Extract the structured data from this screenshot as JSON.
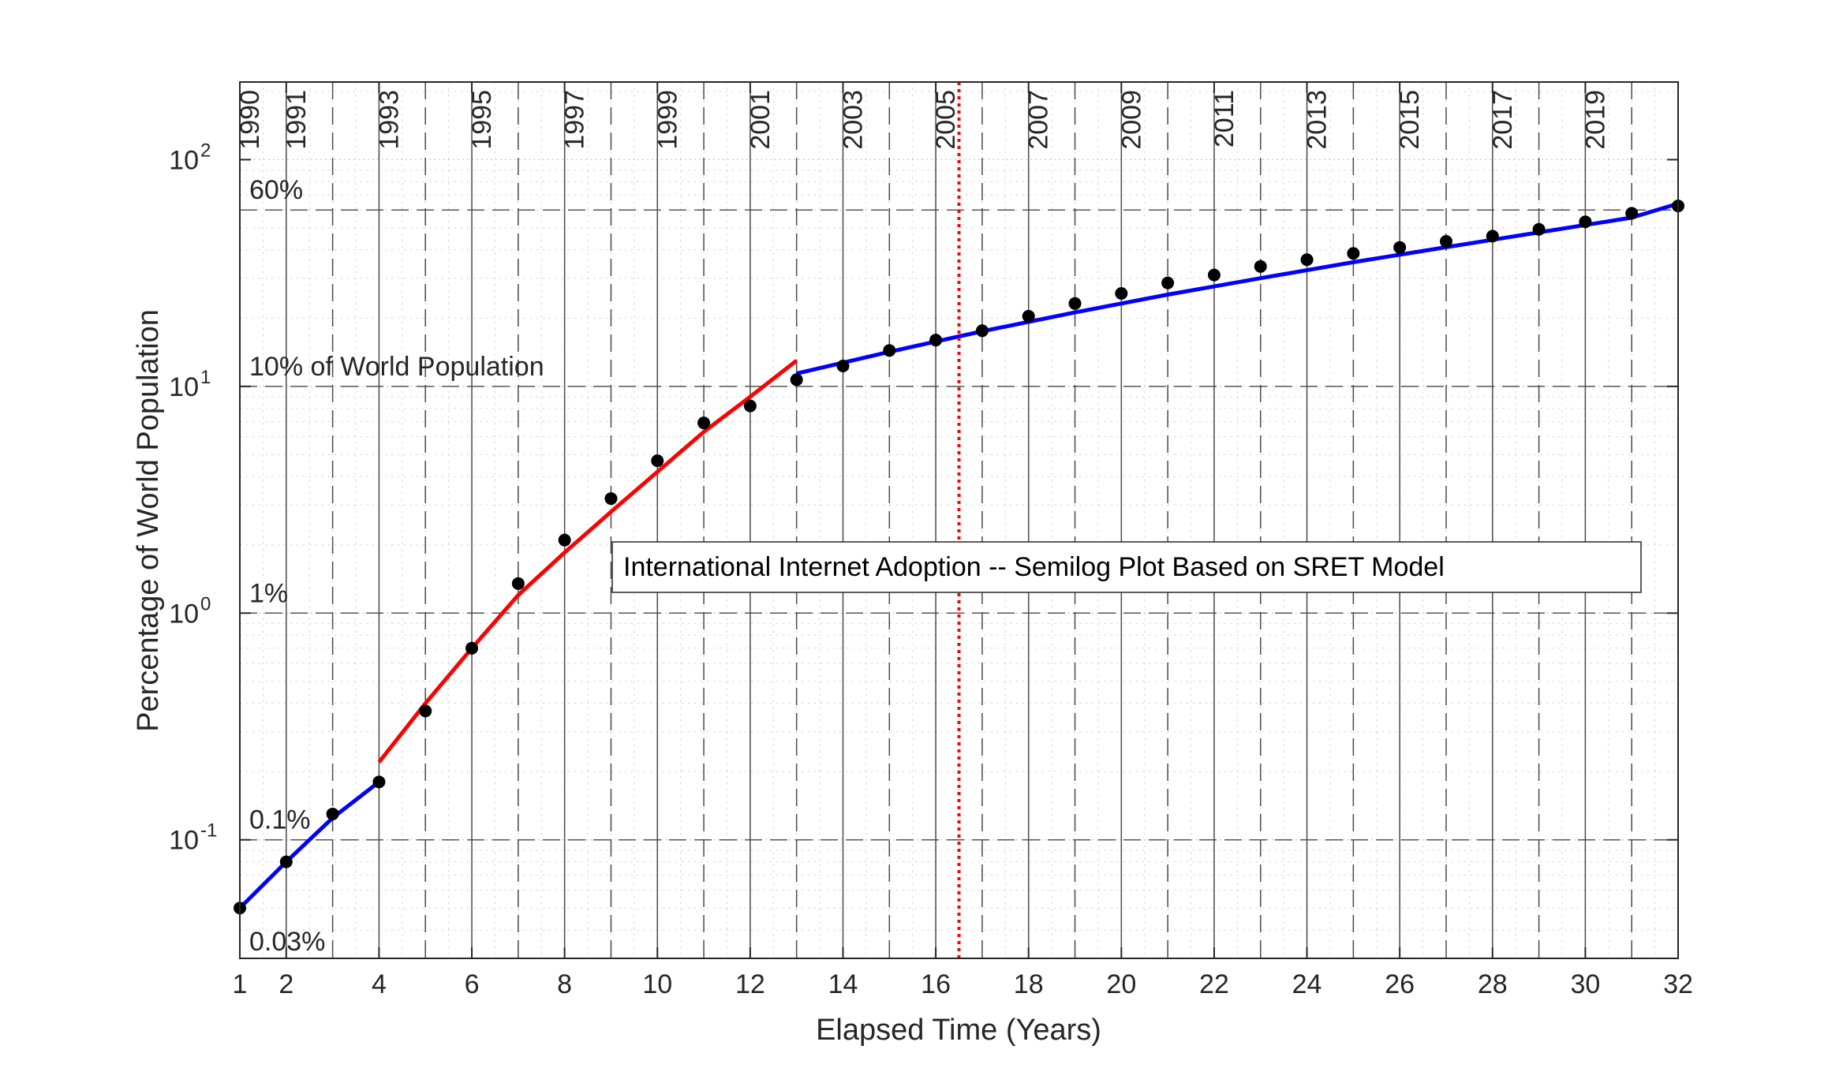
{
  "chart_data": {
    "type": "scatter",
    "title": "",
    "xlabel": "Elapsed Time (Years)",
    "ylabel": "Percentage of World Population",
    "xscale": "linear",
    "yscale": "log",
    "xlim": [
      1,
      32
    ],
    "ylim": [
      0.03,
      220
    ],
    "grid": true,
    "x_ticks": [
      1,
      2,
      4,
      6,
      8,
      10,
      12,
      14,
      16,
      18,
      20,
      22,
      24,
      26,
      28,
      30,
      32
    ],
    "y_ticks": [
      {
        "value": 0.1,
        "base": "10",
        "exp": "-1"
      },
      {
        "value": 1,
        "base": "10",
        "exp": "0"
      },
      {
        "value": 10,
        "base": "10",
        "exp": "1"
      },
      {
        "value": 100,
        "base": "10",
        "exp": "2"
      }
    ],
    "year_markers": [
      {
        "x": 1,
        "label": "1990"
      },
      {
        "x": 2,
        "label": "1991"
      },
      {
        "x": 4,
        "label": "1993"
      },
      {
        "x": 6,
        "label": "1995"
      },
      {
        "x": 8,
        "label": "1997"
      },
      {
        "x": 10,
        "label": "1999"
      },
      {
        "x": 12,
        "label": "2001"
      },
      {
        "x": 14,
        "label": "2003"
      },
      {
        "x": 16,
        "label": "2005"
      },
      {
        "x": 18,
        "label": "2007"
      },
      {
        "x": 20,
        "label": "2009"
      },
      {
        "x": 22,
        "label": "2011"
      },
      {
        "x": 24,
        "label": "2013"
      },
      {
        "x": 26,
        "label": "2015"
      },
      {
        "x": 28,
        "label": "2017"
      },
      {
        "x": 30,
        "label": "2019"
      }
    ],
    "reference_lines": [
      {
        "y": 60,
        "label": "60%"
      },
      {
        "y": 10,
        "label": "10% of World Population"
      },
      {
        "y": 1,
        "label": "1%"
      },
      {
        "y": 0.1,
        "label": "0.1%"
      },
      {
        "y": 0.03,
        "label": "0.03%"
      }
    ],
    "vertical_marker": {
      "x": 16.5,
      "color": "#ff0000",
      "style": "dotted"
    },
    "annotation": "International Internet Adoption -- Semilog Plot Based on SRET Model",
    "points": {
      "color": "#000000",
      "x": [
        1,
        2,
        3,
        4,
        5,
        6,
        7,
        8,
        9,
        10,
        11,
        12,
        13,
        14,
        15,
        16,
        17,
        18,
        19,
        20,
        21,
        22,
        23,
        24,
        25,
        26,
        27,
        28,
        29,
        30,
        31,
        32
      ],
      "y": [
        0.05,
        0.08,
        0.13,
        0.18,
        0.37,
        0.7,
        1.35,
        2.1,
        3.2,
        4.7,
        6.9,
        8.2,
        10.7,
        12.3,
        14.4,
        16.0,
        17.6,
        20.4,
        23.2,
        25.7,
        28.6,
        31.0,
        33.8,
        36.2,
        38.6,
        41.0,
        43.6,
        46.0,
        49.3,
        53.2,
        58.0,
        62.5
      ]
    },
    "series": [
      {
        "color": "#0000ff",
        "x": [
          1,
          2,
          3,
          4
        ],
        "y": [
          0.05,
          0.08,
          0.125,
          0.18
        ]
      },
      {
        "color": "#ff0000",
        "x": [
          4,
          5,
          6,
          7,
          8,
          9,
          10,
          11,
          12,
          13
        ],
        "y": [
          0.22,
          0.4,
          0.7,
          1.2,
          1.85,
          2.8,
          4.2,
          6.3,
          9.0,
          13.0
        ]
      },
      {
        "color": "#0000ff",
        "x": [
          13,
          15,
          17,
          19,
          21,
          23,
          25,
          27,
          29,
          31,
          32
        ],
        "y": [
          11.4,
          14.2,
          17.5,
          21.2,
          25.4,
          30.0,
          35.3,
          41.1,
          47.8,
          55.5,
          64.0
        ]
      }
    ]
  }
}
